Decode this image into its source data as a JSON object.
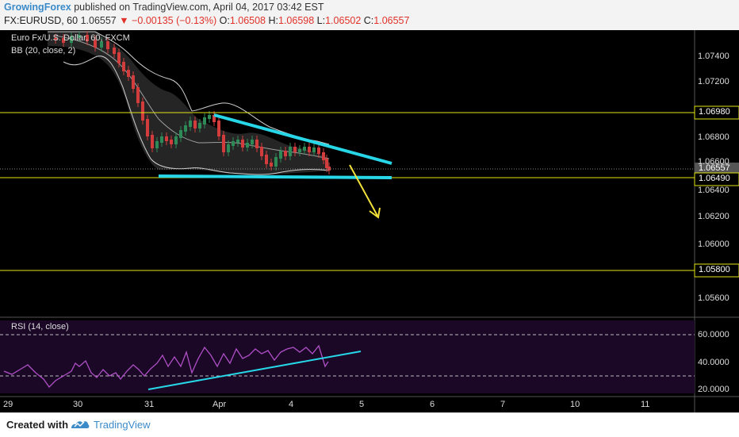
{
  "header": {
    "author": "GrowingForex",
    "published_text": "published on TradingView.com, April 04, 2017 03:42 EST",
    "symbol": "FX:EURUSD, 60",
    "last": "1.06557",
    "change_arrow": "▼",
    "change": "−0.00135 (−0.13%)",
    "o_label": "O:",
    "o_value": "1.06508",
    "h_label": "H:",
    "h_value": "1.06598",
    "l_label": "L:",
    "l_value": "1.06502",
    "c_label": "C:",
    "c_value": "1.06557"
  },
  "main_pane": {
    "title": "Euro Fx/U.S. Dollar, 60, FXCM",
    "indicator": "BB (20, close, 2)",
    "price_labels": [
      "1.07400",
      "1.07200",
      "1.06800",
      "1.06600",
      "1.06400",
      "1.06200",
      "1.06000",
      "1.05600"
    ],
    "highlight_labels": {
      "top_level": "1.06980",
      "current_price": "1.06557",
      "support_level": "1.06490",
      "low_level": "1.05800"
    }
  },
  "rsi_pane": {
    "title": "RSI (14, close)",
    "labels": [
      "60.0000",
      "40.0000",
      "20.0000"
    ]
  },
  "time_axis": {
    "labels": [
      "29",
      "30",
      "31",
      "Apr",
      "4",
      "5",
      "6",
      "7",
      "10",
      "11"
    ]
  },
  "colors": {
    "trendline": "#27d7e8",
    "level_line": "#e5e516",
    "arrow": "#f2e13a",
    "rsi_line": "#b04fc7",
    "up_candle": "#2e8b57",
    "down_candle": "#d23c3c",
    "bb_band": "#cfcfcf"
  },
  "footer": {
    "created_with": "Created with",
    "brand": "TradingView"
  }
}
